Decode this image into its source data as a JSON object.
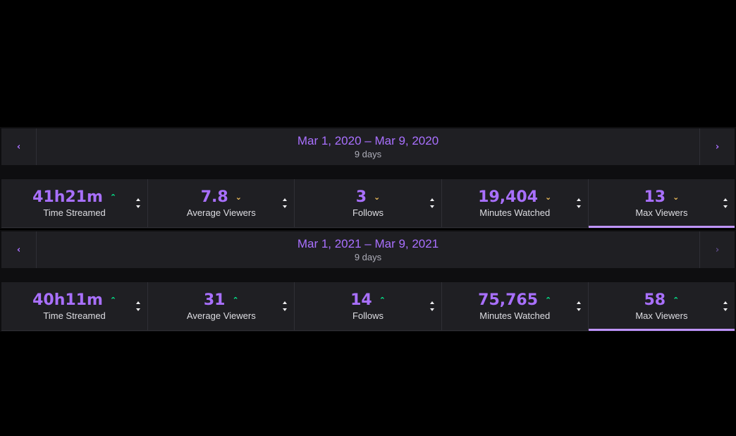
{
  "colors": {
    "accent": "#a970ff",
    "trend_up": "#00f593",
    "trend_down": "#ffca5f",
    "active_underline": "#bf94ff"
  },
  "periods": [
    {
      "date_range": "Mar 1, 2020 – Mar 9, 2020",
      "days": "9 days",
      "prev_icon": "chevron-left-icon",
      "next_icon": "chevron-right-icon",
      "prev_glyph": "‹",
      "next_glyph": "›",
      "next_enabled": true,
      "stats": [
        {
          "value": "41h21m",
          "label": "Time Streamed",
          "trend": "up",
          "trend_glyph": "⌃"
        },
        {
          "value": "7.8",
          "label": "Average Viewers",
          "trend": "down",
          "trend_glyph": "⌄"
        },
        {
          "value": "3",
          "label": "Follows",
          "trend": "down",
          "trend_glyph": "⌄"
        },
        {
          "value": "19,404",
          "label": "Minutes Watched",
          "trend": "down",
          "trend_glyph": "⌄"
        },
        {
          "value": "13",
          "label": "Max Viewers",
          "trend": "down",
          "trend_glyph": "⌄",
          "active": true
        }
      ]
    },
    {
      "date_range": "Mar 1, 2021 – Mar 9, 2021",
      "days": "9 days",
      "prev_icon": "chevron-left-icon",
      "next_icon": "chevron-right-icon",
      "prev_glyph": "‹",
      "next_glyph": "›",
      "next_enabled": false,
      "stats": [
        {
          "value": "40h11m",
          "label": "Time Streamed",
          "trend": "up",
          "trend_glyph": "⌃"
        },
        {
          "value": "31",
          "label": "Average Viewers",
          "trend": "up",
          "trend_glyph": "⌃"
        },
        {
          "value": "14",
          "label": "Follows",
          "trend": "up",
          "trend_glyph": "⌃"
        },
        {
          "value": "75,765",
          "label": "Minutes Watched",
          "trend": "up",
          "trend_glyph": "⌃"
        },
        {
          "value": "58",
          "label": "Max Viewers",
          "trend": "up",
          "trend_glyph": "⌃",
          "active": true
        }
      ]
    }
  ]
}
